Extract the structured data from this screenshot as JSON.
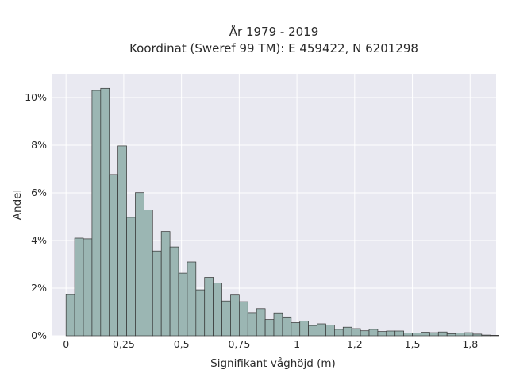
{
  "chart_data": {
    "type": "bar",
    "title": "År 1979 - 2019",
    "subtitle": "Koordinat (Sweref 99 TM): E 459422, N 6201298",
    "xlabel": "Signifikant våghöjd (m)",
    "ylabel": "Andel",
    "xlim": [
      -0.0625,
      1.8625
    ],
    "ylim": [
      0,
      0.11
    ],
    "grid": true,
    "x_ticks": [
      {
        "value": 0,
        "label": "0"
      },
      {
        "value": 0.25,
        "label": "0,25"
      },
      {
        "value": 0.5,
        "label": "0,5"
      },
      {
        "value": 0.75,
        "label": "0,75"
      },
      {
        "value": 1,
        "label": "1"
      },
      {
        "value": 1.25,
        "label": "1,2"
      },
      {
        "value": 1.5,
        "label": "1,5"
      },
      {
        "value": 1.75,
        "label": "1,8"
      }
    ],
    "y_ticks": [
      {
        "value": 0,
        "label": "0%"
      },
      {
        "value": 0.02,
        "label": "2%"
      },
      {
        "value": 0.04,
        "label": "4%"
      },
      {
        "value": 0.06,
        "label": "6%"
      },
      {
        "value": 0.08,
        "label": "8%"
      },
      {
        "value": 0.1,
        "label": "10%"
      }
    ],
    "bin_start": 0,
    "bin_width": 0.0375,
    "values": [
      0.0173,
      0.041,
      0.0407,
      0.103,
      0.1039,
      0.0677,
      0.0797,
      0.0497,
      0.0601,
      0.0528,
      0.0356,
      0.0438,
      0.0373,
      0.0263,
      0.031,
      0.0193,
      0.0245,
      0.0222,
      0.0146,
      0.0171,
      0.0143,
      0.0097,
      0.0114,
      0.0068,
      0.0096,
      0.0079,
      0.0055,
      0.0062,
      0.0043,
      0.005,
      0.0045,
      0.0027,
      0.0036,
      0.003,
      0.0021,
      0.0027,
      0.0018,
      0.002,
      0.002,
      0.0012,
      0.0012,
      0.0015,
      0.0013,
      0.0016,
      0.0009,
      0.0012,
      0.0013,
      0.0007,
      0.0003,
      0.0002
    ],
    "colors": {
      "bar_fill": "#9bb6b3",
      "bar_edge": "#333333",
      "plot_background": "#e9e9f1",
      "grid": "#ffffff"
    }
  }
}
